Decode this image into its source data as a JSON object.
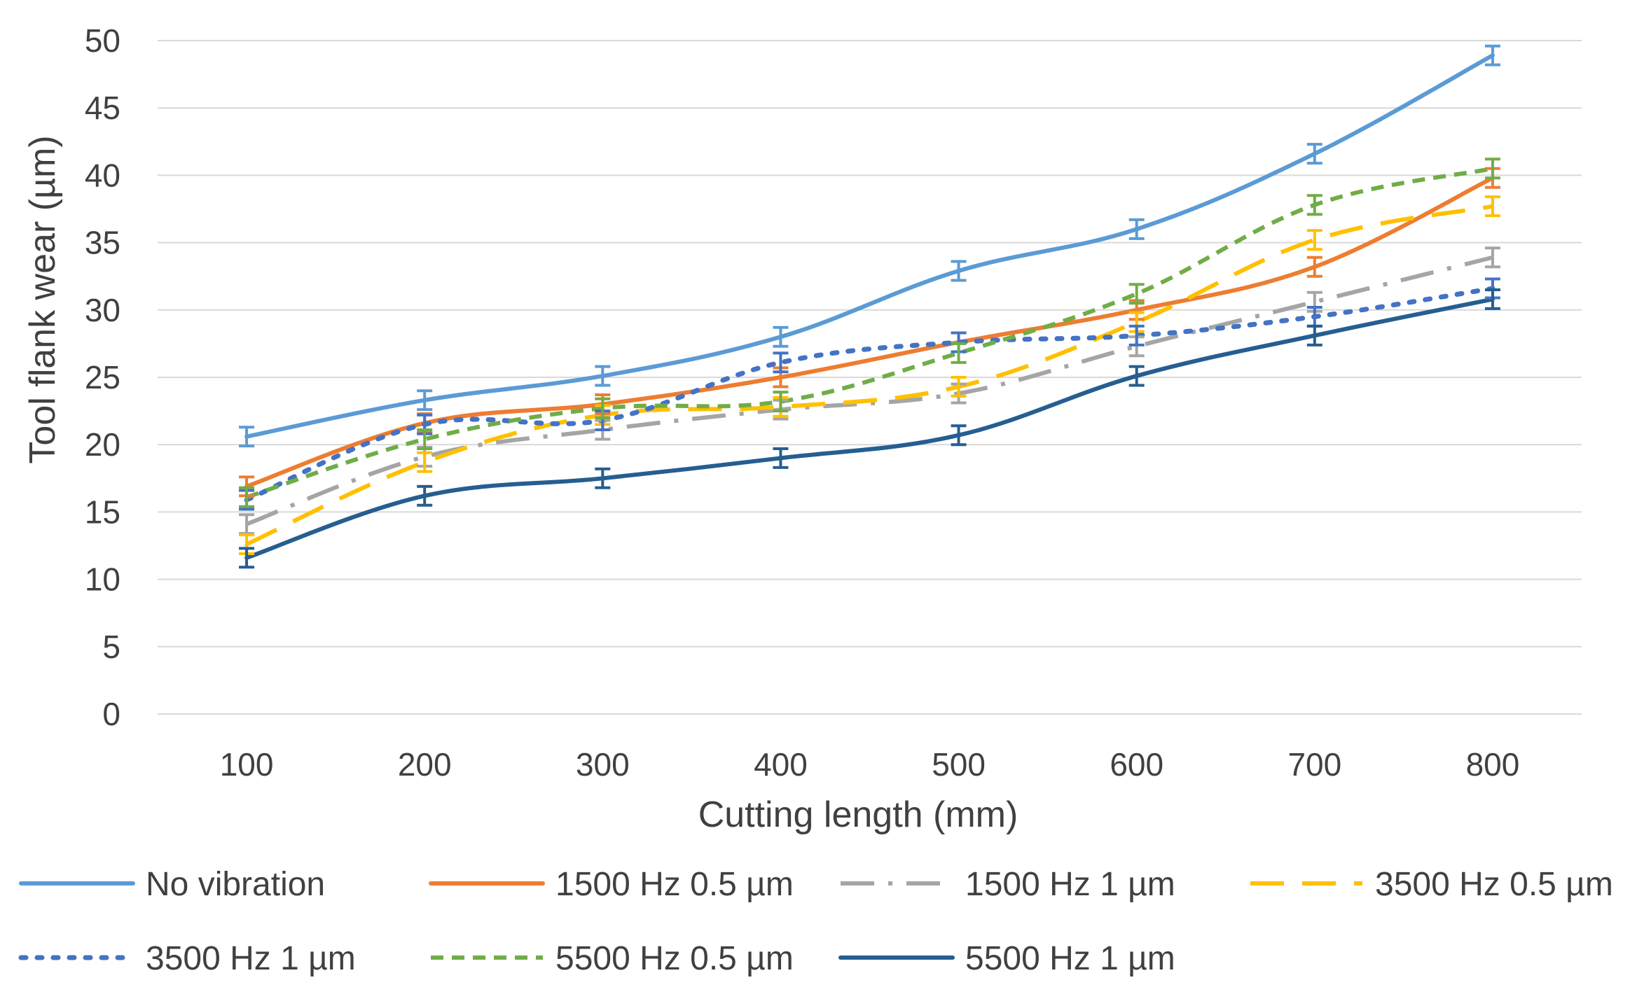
{
  "chart_data": {
    "type": "line",
    "title": "",
    "xlabel": "Cutting length (mm)",
    "ylabel": "Tool flank wear (µm)",
    "categories": [
      "100",
      "200",
      "300",
      "400",
      "500",
      "600",
      "700",
      "800"
    ],
    "x": [
      100,
      200,
      300,
      400,
      500,
      600,
      700,
      800
    ],
    "ylim": [
      0,
      50
    ],
    "yticks": [
      0,
      5,
      10,
      15,
      20,
      25,
      30,
      35,
      40,
      45,
      50
    ],
    "grid": "horizontal",
    "legend_position": "bottom",
    "series": [
      {
        "name": "No vibration",
        "color": "#5B9BD5",
        "dash": "solid",
        "error_bars": true,
        "values": [
          20.6,
          23.3,
          25.1,
          28.0,
          32.9,
          36.0,
          41.6,
          48.9
        ]
      },
      {
        "name": "1500 Hz 0.5 µm",
        "color": "#ED7D31",
        "dash": "solid",
        "error_bars": true,
        "values": [
          16.9,
          21.6,
          23.0,
          25.0,
          27.6,
          30.0,
          33.2,
          39.8
        ]
      },
      {
        "name": "1500 Hz 1 µm",
        "color": "#A5A5A5",
        "dash": "dashdot",
        "error_bars": true,
        "values": [
          14.1,
          19.1,
          21.1,
          22.6,
          23.8,
          27.3,
          30.6,
          33.9
        ]
      },
      {
        "name": "3500 Hz 0.5 µm",
        "color": "#FFC000",
        "dash": "longdash",
        "error_bars": true,
        "values": [
          12.6,
          18.7,
          22.2,
          22.8,
          24.3,
          29.1,
          35.2,
          37.7
        ]
      },
      {
        "name": "3500 Hz 1 µm",
        "color": "#4472C4",
        "dash": "dot",
        "error_bars": true,
        "values": [
          15.9,
          21.5,
          21.8,
          26.1,
          27.6,
          28.1,
          29.5,
          31.6
        ]
      },
      {
        "name": "5500 Hz 0.5 µm",
        "color": "#70AD47",
        "dash": "shortdash",
        "error_bars": true,
        "values": [
          16.1,
          20.4,
          22.7,
          23.2,
          26.8,
          31.2,
          37.8,
          40.5
        ]
      },
      {
        "name": "5500 Hz 1 µm",
        "color": "#255E91",
        "dash": "solid",
        "error_bars": true,
        "values": [
          11.6,
          16.2,
          17.5,
          19.0,
          20.7,
          25.1,
          28.1,
          30.8
        ]
      }
    ]
  }
}
